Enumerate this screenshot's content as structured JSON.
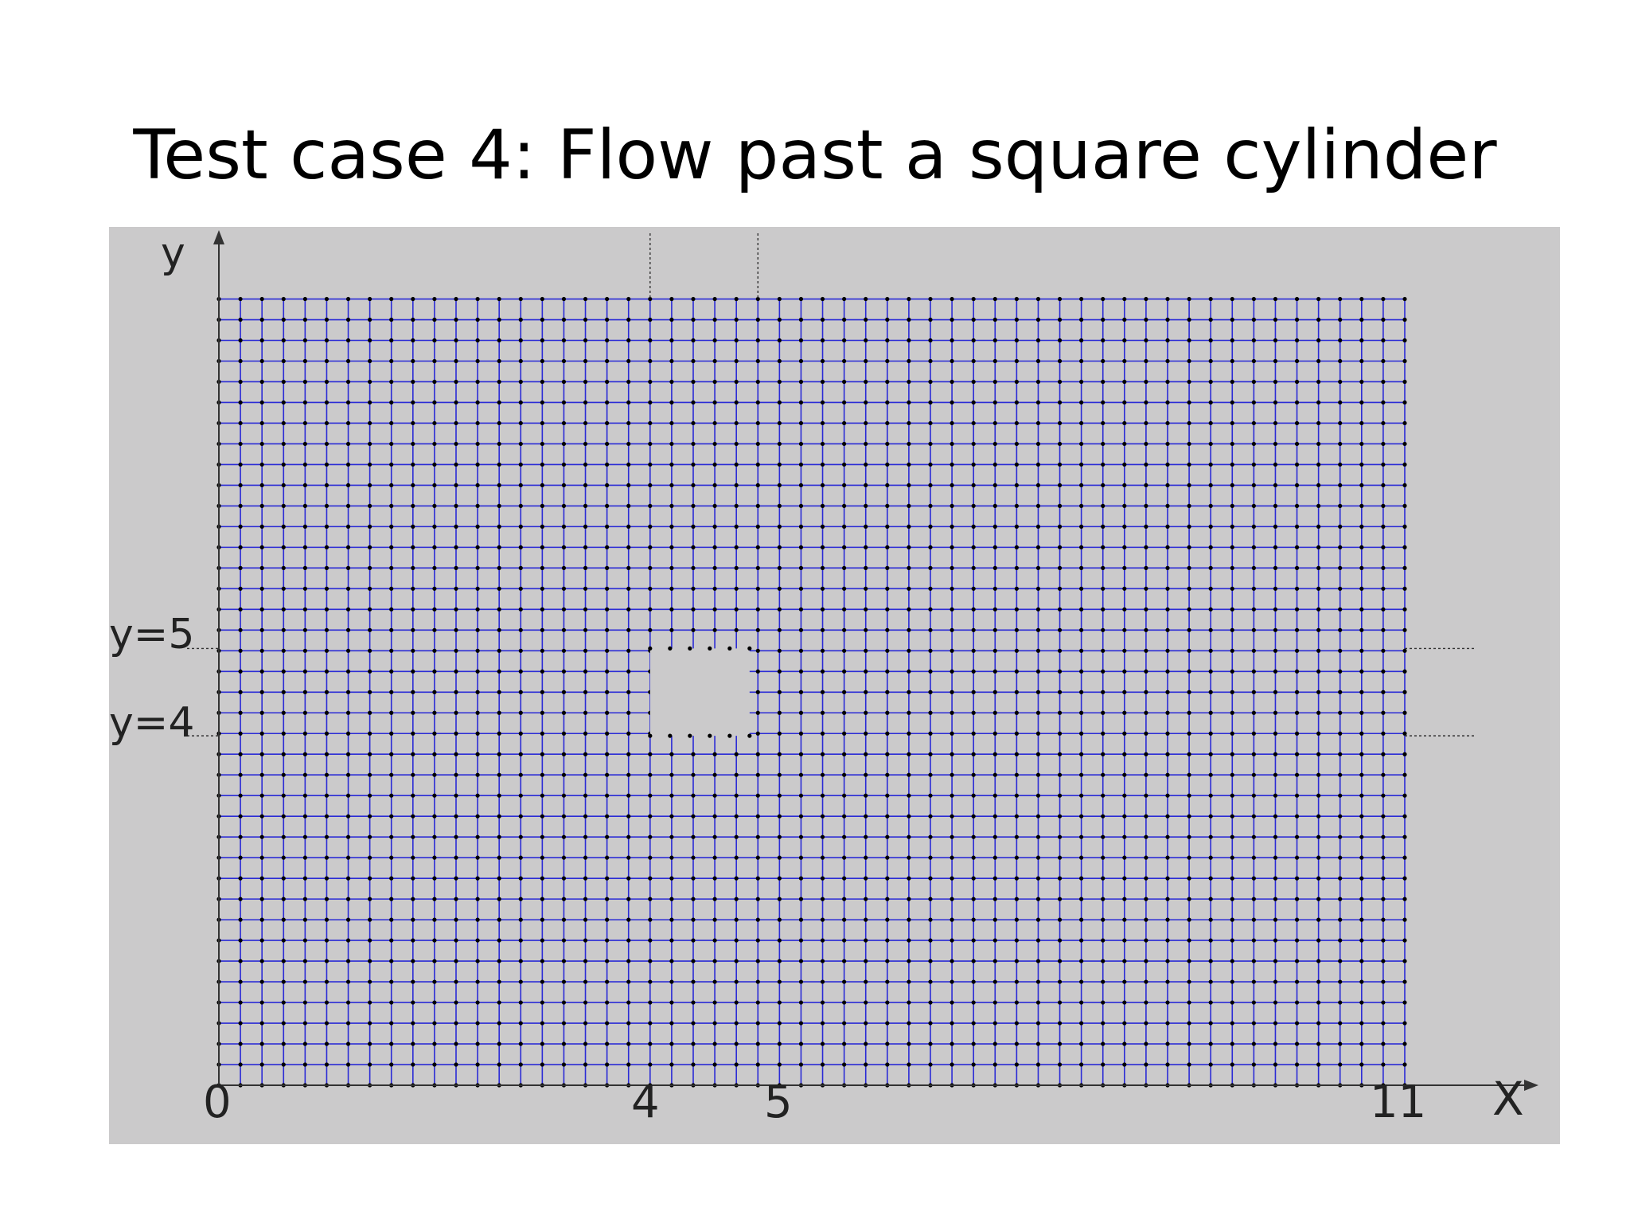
{
  "slide": {
    "title": "Test case 4: Flow past a square cylinder"
  },
  "figure": {
    "axis_label_y": "y",
    "axis_label_x": "X",
    "label_y5": "y=5",
    "label_y4": "y=4",
    "tick_x0": "0",
    "tick_x4": "4",
    "tick_x5": "5",
    "tick_x11": "11",
    "colors": {
      "panel": "#cbcacb",
      "mesh_line": "#2b2bd6",
      "node": "#000000"
    },
    "domain": {
      "x_range": [
        0,
        11
      ],
      "y_range": [
        0,
        9
      ],
      "x_cells": 55,
      "y_cells": 38
    },
    "obstacle": {
      "x_range": [
        4,
        5
      ],
      "y_range": [
        4,
        5
      ]
    }
  }
}
